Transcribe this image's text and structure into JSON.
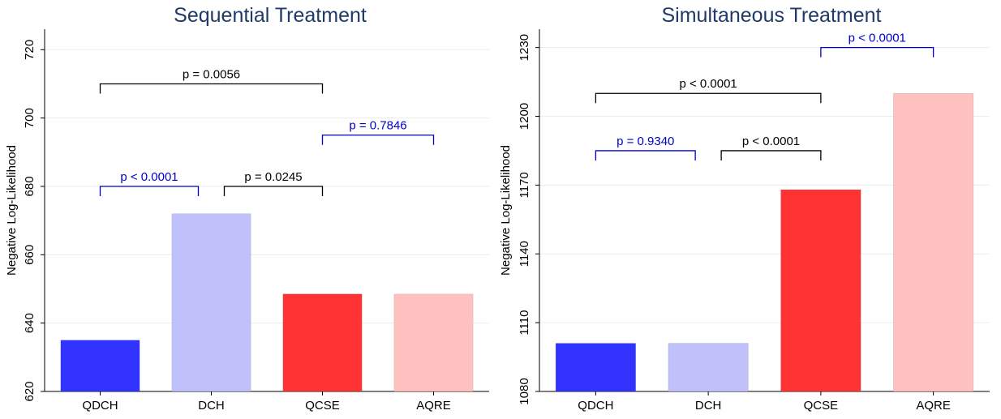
{
  "chart_data": [
    {
      "type": "bar",
      "title": "Sequential Treatment",
      "ylabel": "Negative Log-Likelihood",
      "xlabel": "",
      "categories": [
        "QDCH",
        "DCH",
        "QCSE",
        "AQRE"
      ],
      "values": [
        635,
        672,
        648.5,
        648.5
      ],
      "bar_colors": [
        "#3333ff",
        "#c0c0fa",
        "#ff3333",
        "#ffc0c0"
      ],
      "ylim": [
        620,
        726
      ],
      "yticks": [
        620,
        640,
        660,
        680,
        700,
        720
      ],
      "grid": true,
      "comparisons": [
        {
          "from": 0,
          "to": 2,
          "y": 710,
          "label": "p = 0.0056",
          "color": "#000000"
        },
        {
          "from": 0,
          "to": 1,
          "y": 680,
          "label": "p < 0.0001",
          "color": "#0000cc"
        },
        {
          "from": 1,
          "to": 2,
          "y": 680,
          "label": "p = 0.0245",
          "color": "#000000"
        },
        {
          "from": 2,
          "to": 3,
          "y": 695,
          "label": "p = 0.7846",
          "color": "#0000cc"
        }
      ]
    },
    {
      "type": "bar",
      "title": "Simultaneous Treatment",
      "ylabel": "Negative Log-Likelihood",
      "xlabel": "",
      "categories": [
        "QDCH",
        "DCH",
        "QCSE",
        "AQRE"
      ],
      "values": [
        1101,
        1101,
        1168,
        1210
      ],
      "bar_colors": [
        "#3333ff",
        "#c0c0fa",
        "#ff3333",
        "#ffc0c0"
      ],
      "ylim": [
        1080,
        1238
      ],
      "yticks": [
        1080,
        1110,
        1140,
        1170,
        1200,
        1230
      ],
      "grid": true,
      "comparisons": [
        {
          "from": 0,
          "to": 2,
          "y": 1210,
          "label": "p < 0.0001",
          "color": "#000000"
        },
        {
          "from": 0,
          "to": 1,
          "y": 1185,
          "label": "p = 0.9340",
          "color": "#0000cc"
        },
        {
          "from": 1,
          "to": 2,
          "y": 1185,
          "label": "p < 0.0001",
          "color": "#000000"
        },
        {
          "from": 2,
          "to": 3,
          "y": 1230,
          "label": "p < 0.0001",
          "color": "#0000cc"
        }
      ]
    }
  ]
}
